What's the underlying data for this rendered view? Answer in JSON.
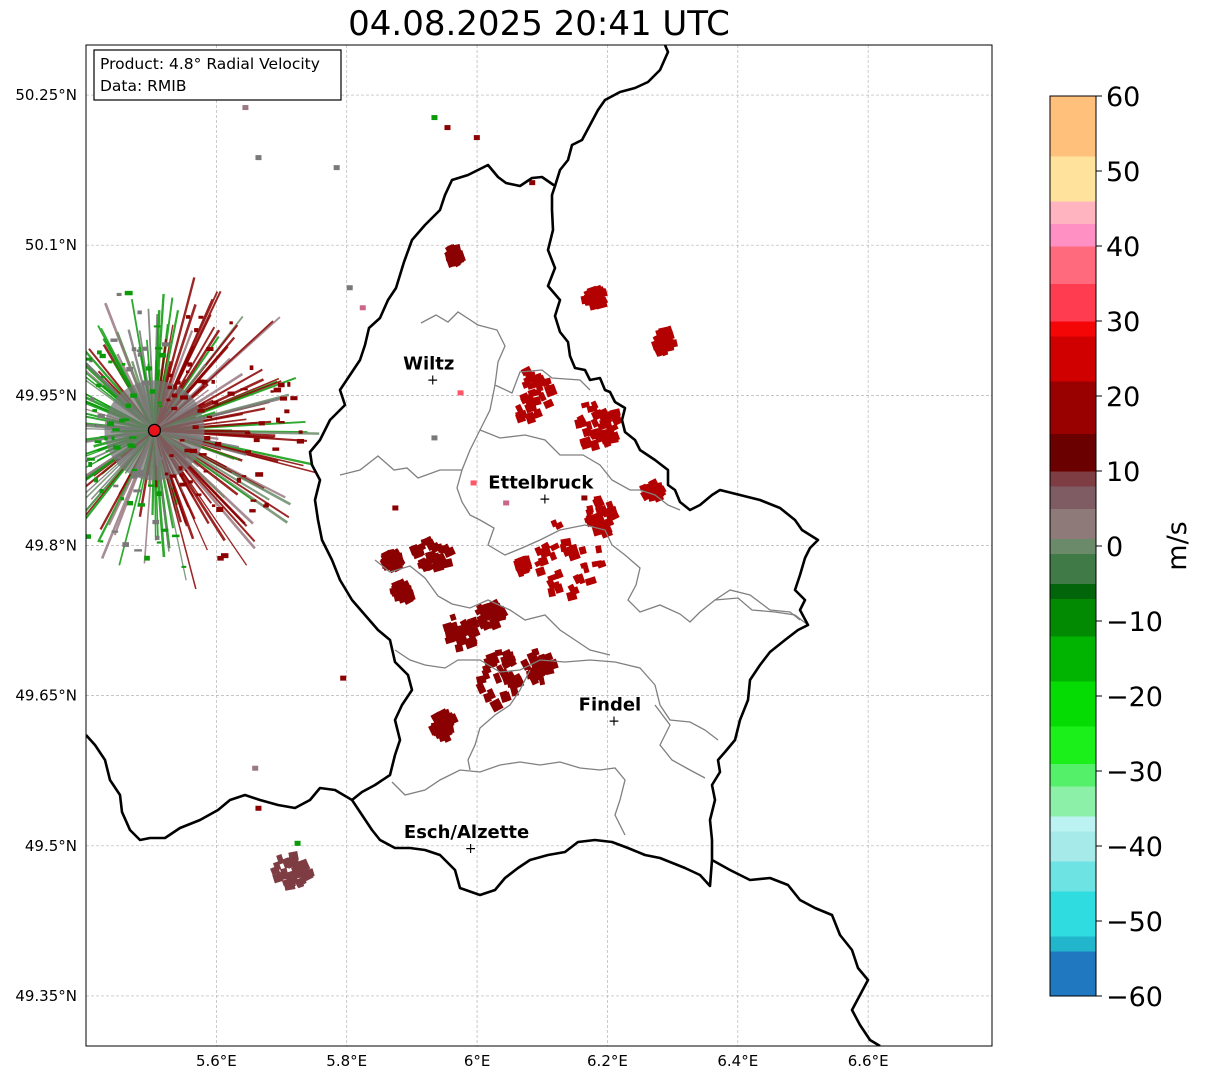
{
  "title": "04.08.2025 20:41 UTC",
  "product_box": {
    "product": "Product: 4.8° Radial Velocity",
    "data": "Data: RMIB"
  },
  "map": {
    "lon_range": [
      5.4,
      6.79
    ],
    "lat_range": [
      49.3,
      50.3
    ],
    "lon_ticks": [
      {
        "value": 5.6,
        "label": "5.6°E"
      },
      {
        "value": 5.8,
        "label": "5.8°E"
      },
      {
        "value": 6.0,
        "label": "6°E"
      },
      {
        "value": 6.2,
        "label": "6.2°E"
      },
      {
        "value": 6.4,
        "label": "6.4°E"
      },
      {
        "value": 6.6,
        "label": "6.6°E"
      }
    ],
    "lat_ticks": [
      {
        "value": 49.35,
        "label": "49.35°N"
      },
      {
        "value": 49.5,
        "label": "49.5°N"
      },
      {
        "value": 49.65,
        "label": "49.65°N"
      },
      {
        "value": 49.8,
        "label": "49.8°N"
      },
      {
        "value": 49.95,
        "label": "49.95°N"
      },
      {
        "value": 50.1,
        "label": "50.1°N"
      },
      {
        "value": 50.25,
        "label": "50.25°N"
      }
    ],
    "grid": true,
    "radar_site": {
      "lon": 5.505,
      "lat": 49.915,
      "color": "#e8141c"
    },
    "cities": [
      {
        "name": "Wiltz",
        "lon": 5.932,
        "lat": 49.966
      },
      {
        "name": "Ettelbruck",
        "lon": 6.104,
        "lat": 49.847
      },
      {
        "name": "Findel",
        "lon": 6.21,
        "lat": 49.625
      },
      {
        "name": "Esch/Alzette",
        "lon": 5.99,
        "lat": 49.498
      }
    ]
  },
  "colorbar": {
    "label": "m/s",
    "vmin": -60,
    "vmax": 60,
    "ticks": [
      {
        "value": 60,
        "label": "60"
      },
      {
        "value": 50,
        "label": "50"
      },
      {
        "value": 40,
        "label": "40"
      },
      {
        "value": 30,
        "label": "30"
      },
      {
        "value": 20,
        "label": "20"
      },
      {
        "value": 10,
        "label": "10"
      },
      {
        "value": 0,
        "label": "0"
      },
      {
        "value": -10,
        "label": "−10"
      },
      {
        "value": -20,
        "label": "−20"
      },
      {
        "value": -30,
        "label": "−30"
      },
      {
        "value": -40,
        "label": "−40"
      },
      {
        "value": -50,
        "label": "−50"
      },
      {
        "value": -60,
        "label": "−60"
      }
    ],
    "stops": [
      {
        "value": -60,
        "color": "#1f78c0"
      },
      {
        "value": -54,
        "color": "#22b6cc"
      },
      {
        "value": -52,
        "color": "#2fdde0"
      },
      {
        "value": -46,
        "color": "#6ee3e3"
      },
      {
        "value": -42,
        "color": "#a6eaea"
      },
      {
        "value": -38,
        "color": "#bdf2f2"
      },
      {
        "value": -36,
        "color": "#8cf0a8"
      },
      {
        "value": -32,
        "color": "#55f06a"
      },
      {
        "value": -29,
        "color": "#1bf01b"
      },
      {
        "value": -24,
        "color": "#04dc04"
      },
      {
        "value": -18,
        "color": "#02b402"
      },
      {
        "value": -12,
        "color": "#028b02"
      },
      {
        "value": -7,
        "color": "#03650a"
      },
      {
        "value": -5,
        "color": "#3f7a47"
      },
      {
        "value": -1,
        "color": "#6b8a6a"
      },
      {
        "value": 1,
        "color": "#8f7a7a"
      },
      {
        "value": 5,
        "color": "#7f5c64"
      },
      {
        "value": 8,
        "color": "#7d3d42"
      },
      {
        "value": 10,
        "color": "#6b0000"
      },
      {
        "value": 15,
        "color": "#990000"
      },
      {
        "value": 22,
        "color": "#d10000"
      },
      {
        "value": 28,
        "color": "#f40606"
      },
      {
        "value": 30,
        "color": "#ff3c50"
      },
      {
        "value": 35,
        "color": "#ff6a7c"
      },
      {
        "value": 40,
        "color": "#ff90c4"
      },
      {
        "value": 43,
        "color": "#ffb4c0"
      },
      {
        "value": 46,
        "color": "#ffe39c"
      },
      {
        "value": 52,
        "color": "#ffc07c"
      },
      {
        "value": 60,
        "color": "#ff9c50"
      }
    ]
  },
  "colors": {
    "outbound_strong": "#b30000",
    "outbound_dark": "#8b0000",
    "inbound": "#0a9a0a",
    "near_zero": "#7a7878",
    "border": "#000000",
    "canton": "#808080",
    "grid": "#b0b0b0"
  }
}
